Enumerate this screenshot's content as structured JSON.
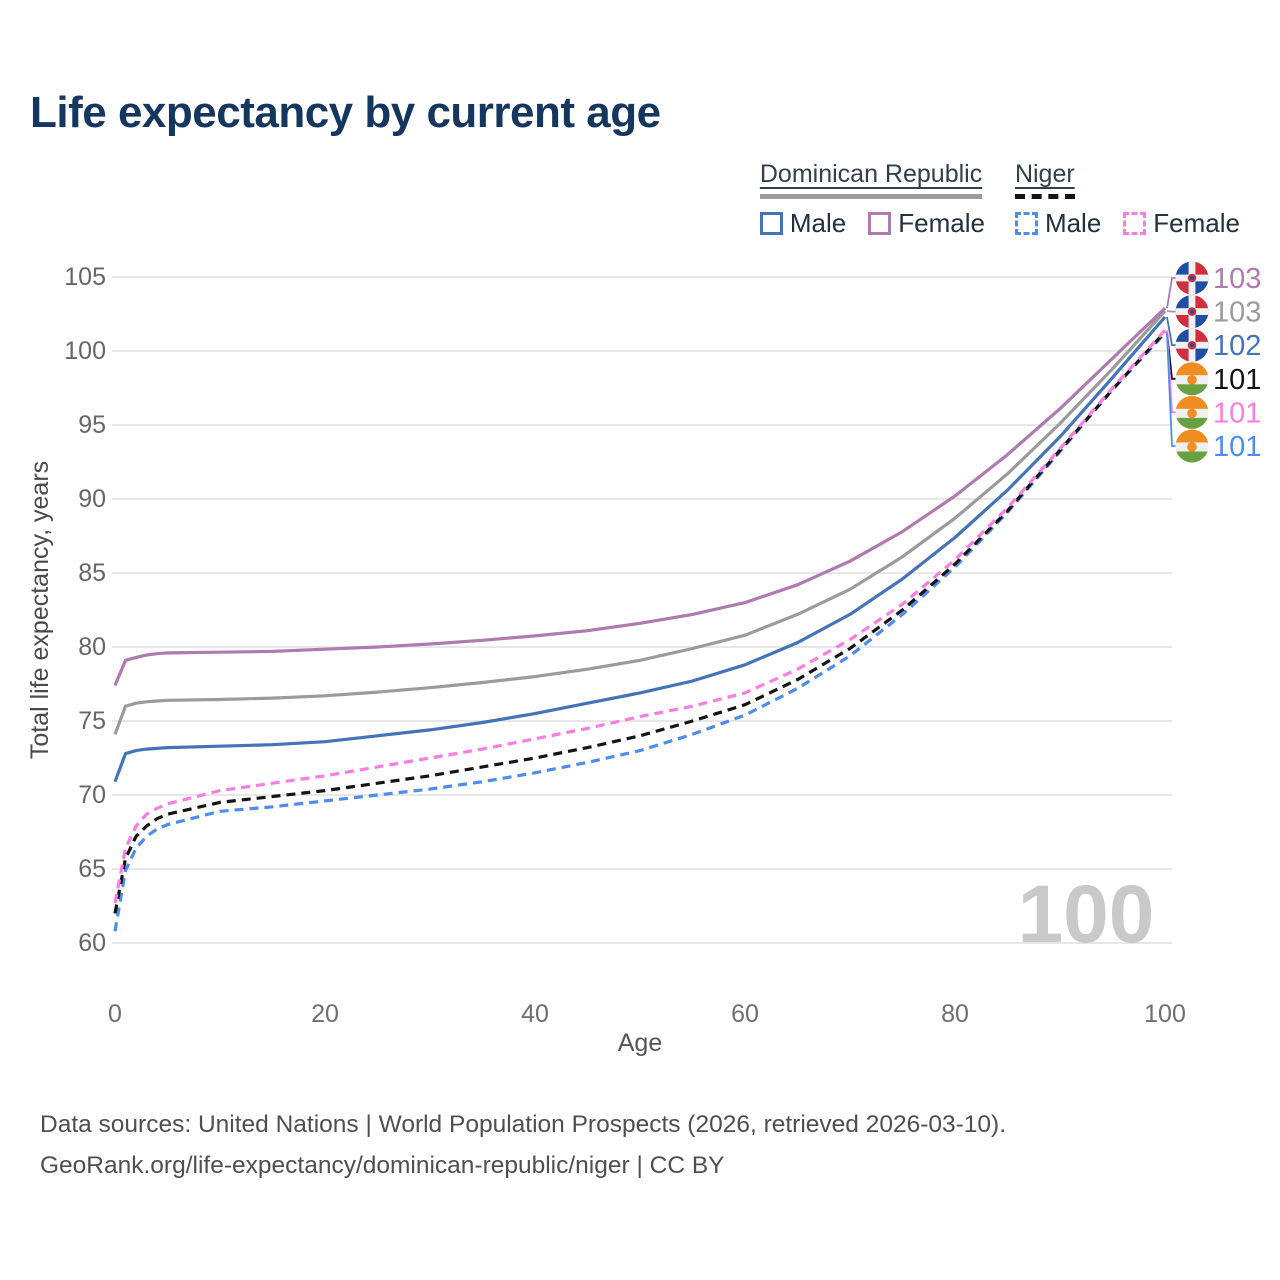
{
  "title": "Life expectancy by current age",
  "legend": {
    "groups": [
      {
        "country": "Dominican Republic",
        "line_style": "solid",
        "underline_color": "#9b9b9b",
        "items": [
          {
            "label": "Male",
            "color": "#4573b9",
            "dashed": false
          },
          {
            "label": "Female",
            "color": "#af7aaf",
            "dashed": false
          }
        ]
      },
      {
        "country": "Niger",
        "line_style": "dashed",
        "underline_color": "#141414",
        "items": [
          {
            "label": "Male",
            "color": "#4d8cf5",
            "dashed": true
          },
          {
            "label": "Female",
            "color": "#ff7de1",
            "dashed": true
          }
        ]
      }
    ]
  },
  "chart_data": {
    "type": "line",
    "title": "Life expectancy by current age",
    "xlabel": "Age",
    "ylabel": "Total life expectancy, years",
    "xlim": [
      0,
      100
    ],
    "ylim": [
      60,
      105
    ],
    "xticks": [
      0,
      20,
      40,
      60,
      80,
      100
    ],
    "yticks": [
      60,
      65,
      70,
      75,
      80,
      85,
      90,
      95,
      100,
      105
    ],
    "grid": "horizontal",
    "legend_position": "top-right",
    "x": [
      0,
      1,
      2,
      3,
      4,
      5,
      10,
      15,
      20,
      25,
      30,
      35,
      40,
      45,
      50,
      55,
      60,
      65,
      70,
      75,
      80,
      85,
      90,
      95,
      100
    ],
    "series": [
      {
        "name": "Dominican Republic Male",
        "country": "Dominican Republic",
        "sex": "Male",
        "color": "#4573b9",
        "dashed": false,
        "values": [
          70.9,
          72.8,
          73.0,
          73.1,
          73.15,
          73.2,
          73.3,
          73.4,
          73.6,
          74.0,
          74.4,
          74.9,
          75.5,
          76.2,
          76.9,
          77.7,
          78.8,
          80.3,
          82.2,
          84.6,
          87.4,
          90.6,
          94.2,
          98.2,
          102.3
        ]
      },
      {
        "name": "Dominican Republic Female",
        "country": "Dominican Republic",
        "sex": "Female",
        "color": "#af7aaf",
        "dashed": false,
        "values": [
          77.4,
          79.1,
          79.3,
          79.45,
          79.55,
          79.6,
          79.65,
          79.7,
          79.85,
          80.0,
          80.2,
          80.45,
          80.75,
          81.1,
          81.6,
          82.2,
          83.0,
          84.2,
          85.8,
          87.8,
          90.2,
          93.0,
          96.1,
          99.5,
          102.9
        ]
      },
      {
        "name": "Dominican Republic Both sexes",
        "country": "Dominican Republic",
        "sex": "Both sexes",
        "color": "#9b9b9b",
        "dashed": false,
        "values": [
          74.1,
          76.0,
          76.2,
          76.3,
          76.35,
          76.4,
          76.45,
          76.55,
          76.7,
          76.95,
          77.25,
          77.6,
          78.0,
          78.5,
          79.1,
          79.9,
          80.8,
          82.2,
          83.9,
          86.1,
          88.7,
          91.7,
          95.1,
          98.8,
          102.7
        ]
      },
      {
        "name": "Niger Male",
        "country": "Niger",
        "sex": "Male",
        "color": "#4d8cf5",
        "dashed": true,
        "values": [
          60.8,
          64.9,
          66.4,
          67.2,
          67.7,
          68.0,
          68.9,
          69.2,
          69.6,
          70.0,
          70.4,
          70.9,
          71.5,
          72.2,
          73.0,
          74.1,
          75.4,
          77.2,
          79.4,
          82.2,
          85.4,
          89.1,
          93.2,
          97.4,
          101.2
        ]
      },
      {
        "name": "Niger Female",
        "country": "Niger",
        "sex": "Female",
        "color": "#ff7de1",
        "dashed": true,
        "values": [
          62.7,
          66.4,
          67.9,
          68.7,
          69.1,
          69.4,
          70.3,
          70.8,
          71.3,
          71.9,
          72.5,
          73.1,
          73.8,
          74.5,
          75.3,
          76.0,
          76.9,
          78.5,
          80.5,
          82.9,
          85.9,
          89.4,
          93.4,
          97.5,
          101.4
        ]
      },
      {
        "name": "Niger Both sexes",
        "country": "Niger",
        "sex": "Both sexes",
        "color": "#141414",
        "dashed": true,
        "values": [
          62.0,
          65.7,
          67.2,
          67.9,
          68.4,
          68.7,
          69.5,
          69.9,
          70.3,
          70.8,
          71.3,
          71.9,
          72.5,
          73.2,
          74.0,
          75.0,
          76.1,
          77.8,
          79.9,
          82.5,
          85.6,
          89.2,
          93.3,
          97.4,
          101.3
        ]
      }
    ]
  },
  "end_labels": [
    {
      "value": "103",
      "color": "#af7aaf",
      "flag": "dominican-republic",
      "series_index": 1
    },
    {
      "value": "103",
      "color": "#9b9b9b",
      "flag": "dominican-republic",
      "series_index": 2
    },
    {
      "value": "102",
      "color": "#4573b9",
      "flag": "dominican-republic",
      "series_index": 0
    },
    {
      "value": "101",
      "color": "#141414",
      "flag": "niger",
      "series_index": 5
    },
    {
      "value": "101",
      "color": "#ff7de1",
      "flag": "niger",
      "series_index": 4
    },
    {
      "value": "101",
      "color": "#4d8cf5",
      "flag": "niger",
      "series_index": 3
    }
  ],
  "watermark": "100",
  "footer": {
    "line1": "Data sources: United Nations | World Population Prospects (2026, retrieved 2026-03-10).",
    "line2": "GeoRank.org/life-expectancy/dominican-republic/niger | CC BY"
  },
  "colors": {
    "title": "#15375f",
    "gridline": "#e7e7e7",
    "axis_text": "#666666",
    "watermark": "#c9c9c9",
    "footer_text": "#4f4f4f",
    "dr_flag_blue": "#1f4fa3",
    "dr_flag_red": "#d22f3e",
    "niger_flag_orange": "#f08d21",
    "niger_flag_green": "#69a042"
  }
}
